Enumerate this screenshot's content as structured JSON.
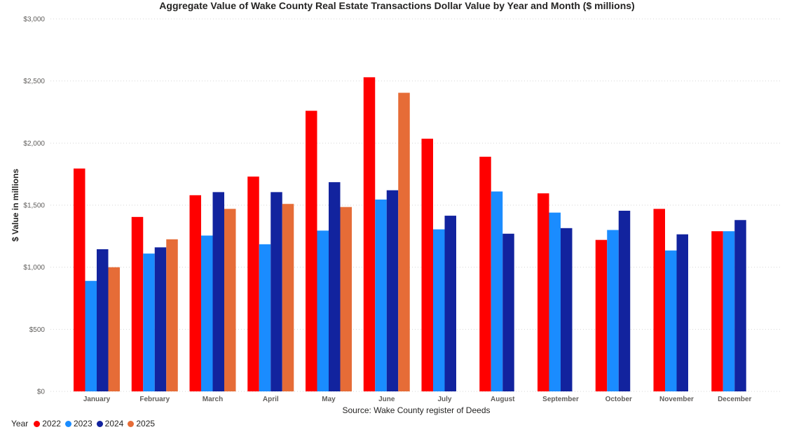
{
  "chart_data": {
    "type": "bar",
    "title": "Aggregate Value of Wake County Real Estate Transactions Dollar Value by Year and Month ($ millions)",
    "xlabel": "Source: Wake County register of Deeds",
    "ylabel": "$ Value in millions",
    "ylim": [
      0,
      3000
    ],
    "yticks": [
      {
        "value": 0,
        "label": "$0"
      },
      {
        "value": 500,
        "label": "$500"
      },
      {
        "value": 1000,
        "label": "$1,000"
      },
      {
        "value": 1500,
        "label": "$1,500"
      },
      {
        "value": 2000,
        "label": "$2,000"
      },
      {
        "value": 2500,
        "label": "$2,500"
      },
      {
        "value": 3000,
        "label": "$3,000"
      }
    ],
    "grid": "horizontal dotted",
    "legend_title": "Year",
    "legend_position": "bottom-left",
    "categories": [
      "January",
      "February",
      "March",
      "April",
      "May",
      "June",
      "July",
      "August",
      "September",
      "October",
      "November",
      "December"
    ],
    "series": [
      {
        "name": "2022",
        "color": "#ff0000",
        "values": [
          1795,
          1405,
          1580,
          1730,
          2260,
          2530,
          2035,
          1890,
          1595,
          1220,
          1470,
          1290
        ]
      },
      {
        "name": "2023",
        "color": "#1a8cff",
        "values": [
          890,
          1110,
          1255,
          1185,
          1295,
          1545,
          1305,
          1610,
          1440,
          1300,
          1135,
          1290
        ]
      },
      {
        "name": "2024",
        "color": "#12239e",
        "values": [
          1145,
          1160,
          1605,
          1605,
          1685,
          1620,
          1415,
          1270,
          1315,
          1455,
          1265,
          1380
        ]
      },
      {
        "name": "2025",
        "color": "#e66c37",
        "values": [
          1000,
          1225,
          1470,
          1510,
          1485,
          2405,
          null,
          null,
          null,
          null,
          null,
          null
        ]
      }
    ]
  }
}
